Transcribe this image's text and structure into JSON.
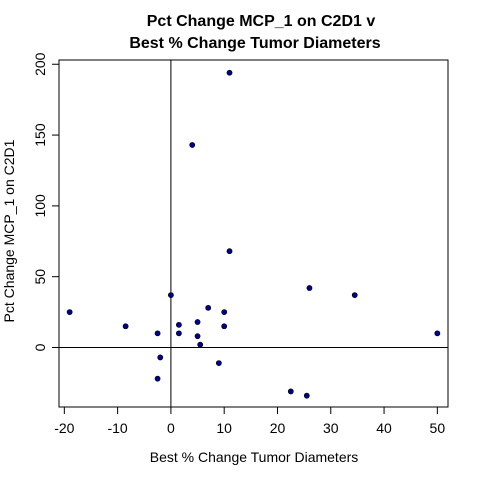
{
  "chart_data": {
    "type": "scatter",
    "title_line1": "Pct Change MCP_1 on C2D1 v",
    "title_line2": "Best % Change Tumor Diameters",
    "xlabel": "Best % Change Tumor Diameters",
    "ylabel": "Pct Change MCP_1 on C2D1",
    "xlim": [
      -21,
      52
    ],
    "ylim": [
      -42,
      203
    ],
    "x_ticks": [
      -20,
      -10,
      0,
      10,
      20,
      30,
      40,
      50
    ],
    "y_ticks": [
      0,
      50,
      100,
      150,
      200
    ],
    "reference_lines": {
      "x": 0,
      "y": 0
    },
    "point_color": "#00008b",
    "points": [
      {
        "x": 11,
        "y": 194
      },
      {
        "x": 4,
        "y": 143
      },
      {
        "x": 11,
        "y": 68
      },
      {
        "x": 26,
        "y": 42
      },
      {
        "x": 34.5,
        "y": 37
      },
      {
        "x": 0,
        "y": 37
      },
      {
        "x": 7,
        "y": 28
      },
      {
        "x": -19,
        "y": 25
      },
      {
        "x": 10,
        "y": 25
      },
      {
        "x": 5,
        "y": 18
      },
      {
        "x": 1.5,
        "y": 16
      },
      {
        "x": -8.5,
        "y": 15
      },
      {
        "x": 10,
        "y": 15
      },
      {
        "x": -2.5,
        "y": 10
      },
      {
        "x": 1.5,
        "y": 10
      },
      {
        "x": 5,
        "y": 8
      },
      {
        "x": 50,
        "y": 10
      },
      {
        "x": 5.5,
        "y": 2
      },
      {
        "x": -2,
        "y": -7
      },
      {
        "x": 9,
        "y": -11
      },
      {
        "x": -2.5,
        "y": -22
      },
      {
        "x": 22.5,
        "y": -31
      },
      {
        "x": 25.5,
        "y": -34
      }
    ]
  }
}
